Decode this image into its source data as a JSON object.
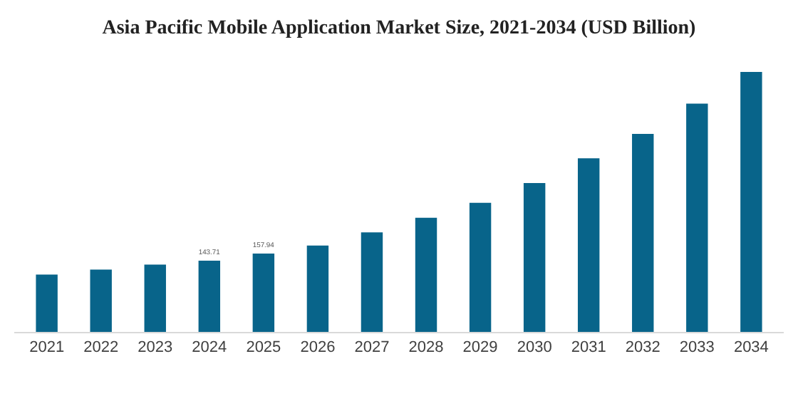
{
  "chart_data": {
    "type": "bar",
    "title": "Asia Pacific Mobile Application Market Size, 2021-2034 (USD Billion)",
    "categories": [
      "2021",
      "2022",
      "2023",
      "2024",
      "2025",
      "2026",
      "2027",
      "2028",
      "2029",
      "2030",
      "2031",
      "2032",
      "2033",
      "2034"
    ],
    "values": [
      115.5,
      125.6,
      135.6,
      143.71,
      157.94,
      174,
      200.7,
      230,
      260,
      300,
      350,
      399,
      460,
      524
    ],
    "value_labels": [
      null,
      null,
      null,
      "143.71",
      "157.94",
      null,
      null,
      null,
      null,
      null,
      null,
      null,
      null,
      null
    ],
    "color": "#08648a"
  }
}
